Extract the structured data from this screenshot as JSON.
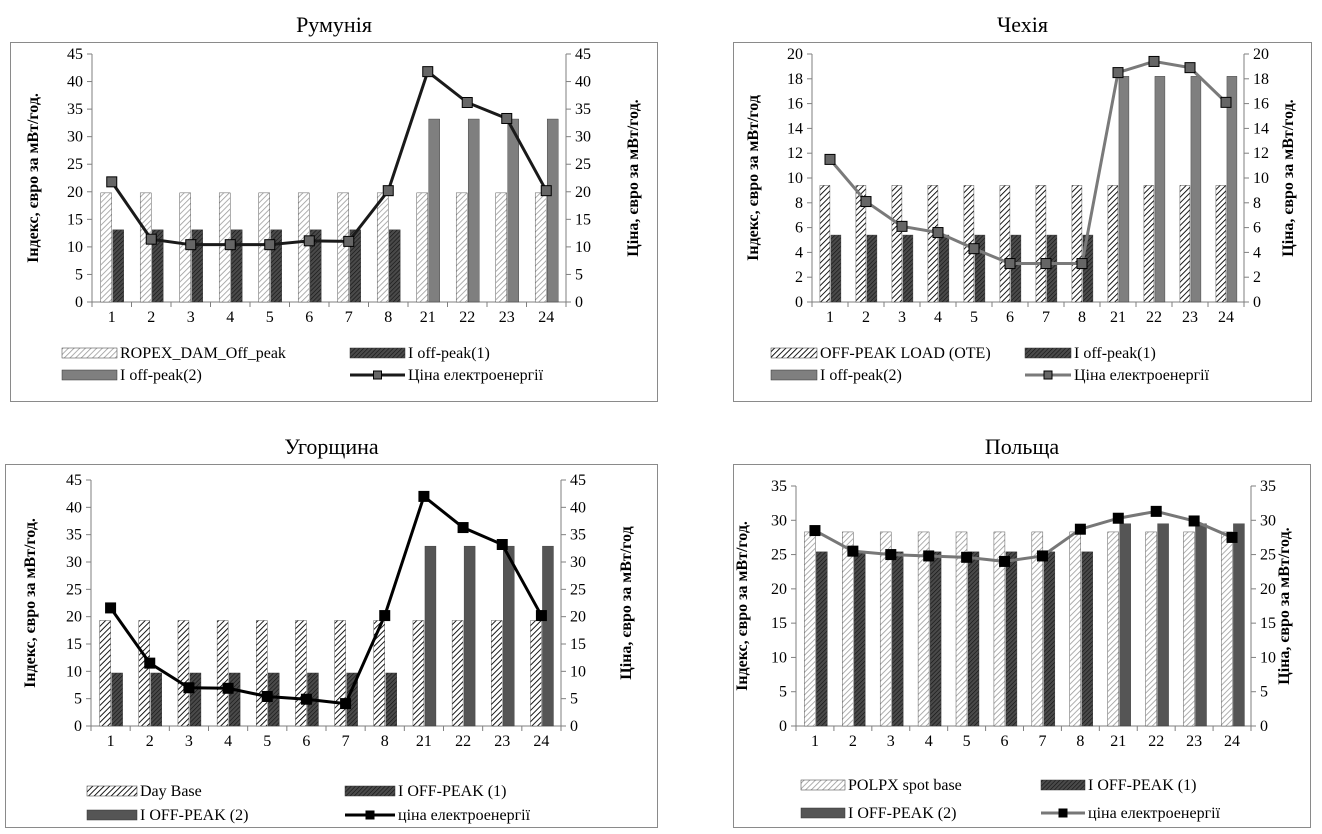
{
  "chart_data": [
    {
      "type": "bar",
      "title": "Румунія",
      "ylabel": "Індекс, євро за мВт/год.",
      "y2label": "Ціна,  євро за мВт/год.",
      "categories": [
        "1",
        "2",
        "3",
        "4",
        "5",
        "6",
        "7",
        "8",
        "21",
        "22",
        "23",
        "24"
      ],
      "ylim": [
        0,
        45
      ],
      "y2lim": [
        0,
        45
      ],
      "ystep": 5,
      "series": [
        {
          "name": "ROPEX_DAM_Off_peak",
          "kind": "bar",
          "pattern": "diag-light",
          "values": [
            19.8,
            19.8,
            19.8,
            19.8,
            19.8,
            19.8,
            19.8,
            19.8,
            19.8,
            19.8,
            19.8,
            19.8
          ]
        },
        {
          "name": "I off-peak(1)",
          "kind": "bar",
          "pattern": "dark-hatch",
          "values": [
            13.1,
            13.1,
            13.1,
            13.1,
            13.1,
            13.1,
            13.1,
            13.1,
            null,
            null,
            null,
            null
          ]
        },
        {
          "name": "I off-peak(2)",
          "kind": "bar",
          "pattern": "gray-solid",
          "values": [
            null,
            null,
            null,
            null,
            null,
            null,
            null,
            null,
            33.2,
            33.2,
            33.2,
            33.2
          ]
        },
        {
          "name": "Ціна електроенергії",
          "kind": "line",
          "axis": "right",
          "line_color": "#1a1a1a",
          "marker_color": "#666666",
          "values": [
            21.8,
            11.4,
            10.4,
            10.4,
            10.4,
            11.1,
            11.0,
            20.2,
            41.8,
            36.2,
            33.3,
            20.2
          ]
        }
      ],
      "legend": "bottom"
    },
    {
      "type": "bar",
      "title": "Чехія",
      "ylabel": "Індекс, євро за мВт/год",
      "y2label": "Ціна,  євро за мВт/год.",
      "categories": [
        "1",
        "2",
        "3",
        "4",
        "5",
        "6",
        "7",
        "8",
        "21",
        "22",
        "23",
        "24"
      ],
      "ylim": [
        0,
        20
      ],
      "y2lim": [
        0,
        20
      ],
      "ystep": 2,
      "series": [
        {
          "name": "OFF-PEAK LOAD (OTE)",
          "kind": "bar",
          "pattern": "diag-bold",
          "values": [
            9.4,
            9.4,
            9.4,
            9.4,
            9.4,
            9.4,
            9.4,
            9.4,
            9.4,
            9.4,
            9.4,
            9.4
          ]
        },
        {
          "name": "I off-peak(1)",
          "kind": "bar",
          "pattern": "dark-hatch",
          "values": [
            5.4,
            5.4,
            5.4,
            5.4,
            5.4,
            5.4,
            5.4,
            5.4,
            null,
            null,
            null,
            null
          ]
        },
        {
          "name": "I off-peak(2)",
          "kind": "bar",
          "pattern": "gray-solid",
          "values": [
            null,
            null,
            null,
            null,
            null,
            null,
            null,
            null,
            18.2,
            18.2,
            18.2,
            18.2
          ]
        },
        {
          "name": "Ціна електроенергії",
          "kind": "line",
          "axis": "right",
          "line_color": "#7a7a7a",
          "marker_color": "#666666",
          "values": [
            11.5,
            8.1,
            6.1,
            5.6,
            4.3,
            3.1,
            3.1,
            3.1,
            18.5,
            19.4,
            18.9,
            16.1
          ]
        }
      ],
      "legend": "bottom"
    },
    {
      "type": "bar",
      "title": "Угорщина",
      "ylabel": "Індекс, євро за мВт/год.",
      "y2label": "Ціна,  євро за мВт/год",
      "categories": [
        "1",
        "2",
        "3",
        "4",
        "5",
        "6",
        "7",
        "8",
        "21",
        "22",
        "23",
        "24"
      ],
      "ylim": [
        0,
        45
      ],
      "y2lim": [
        0,
        45
      ],
      "ystep": 5,
      "series": [
        {
          "name": "Day Base",
          "kind": "bar",
          "pattern": "diag-bold",
          "values": [
            19.3,
            19.3,
            19.3,
            19.3,
            19.3,
            19.3,
            19.3,
            19.3,
            19.3,
            19.3,
            19.3,
            19.3
          ]
        },
        {
          "name": "I OFF-PEAK (1)",
          "kind": "bar",
          "pattern": "dark-hatch",
          "values": [
            9.7,
            9.7,
            9.7,
            9.7,
            9.7,
            9.7,
            9.7,
            9.7,
            null,
            null,
            null,
            null
          ]
        },
        {
          "name": "I OFF-PEAK (2)",
          "kind": "bar",
          "pattern": "dark-solid",
          "values": [
            null,
            null,
            null,
            null,
            null,
            null,
            null,
            null,
            32.9,
            32.9,
            32.9,
            32.9
          ]
        },
        {
          "name": "ціна електроенергії",
          "kind": "line",
          "axis": "right",
          "line_color": "#000000",
          "marker_color": "#000000",
          "values": [
            21.6,
            11.5,
            7.0,
            6.9,
            5.4,
            4.9,
            4.1,
            20.2,
            42.0,
            36.3,
            33.2,
            20.2
          ]
        }
      ],
      "legend": "bottom"
    },
    {
      "type": "bar",
      "title": "Польща",
      "ylabel": "Індекс, євро за мВт/год.",
      "y2label": "Ціна,  євро за мВт/год.",
      "categories": [
        "1",
        "2",
        "3",
        "4",
        "5",
        "6",
        "7",
        "8",
        "21",
        "22",
        "23",
        "24"
      ],
      "ylim": [
        0,
        35
      ],
      "y2lim": [
        0,
        35
      ],
      "ystep": 5,
      "series": [
        {
          "name": "POLPX spot base",
          "kind": "bar",
          "pattern": "diag-light",
          "values": [
            28.3,
            28.3,
            28.3,
            28.3,
            28.3,
            28.3,
            28.3,
            28.3,
            28.3,
            28.3,
            28.3,
            28.3
          ]
        },
        {
          "name": "I OFF-PEAK (1)",
          "kind": "bar",
          "pattern": "dark-hatch",
          "values": [
            25.4,
            25.4,
            25.4,
            25.4,
            25.4,
            25.4,
            25.4,
            25.4,
            null,
            null,
            null,
            null
          ]
        },
        {
          "name": "I OFF-PEAK (2)",
          "kind": "bar",
          "pattern": "dark-solid",
          "values": [
            null,
            null,
            null,
            null,
            null,
            null,
            null,
            null,
            29.5,
            29.5,
            29.5,
            29.5
          ]
        },
        {
          "name": "ціна електроенергії",
          "kind": "line",
          "axis": "right",
          "line_color": "#777777",
          "marker_color": "#000000",
          "values": [
            28.5,
            25.5,
            25.0,
            24.8,
            24.6,
            24.0,
            24.8,
            28.7,
            30.3,
            31.3,
            29.9,
            27.5
          ]
        }
      ],
      "legend": "bottom"
    }
  ]
}
